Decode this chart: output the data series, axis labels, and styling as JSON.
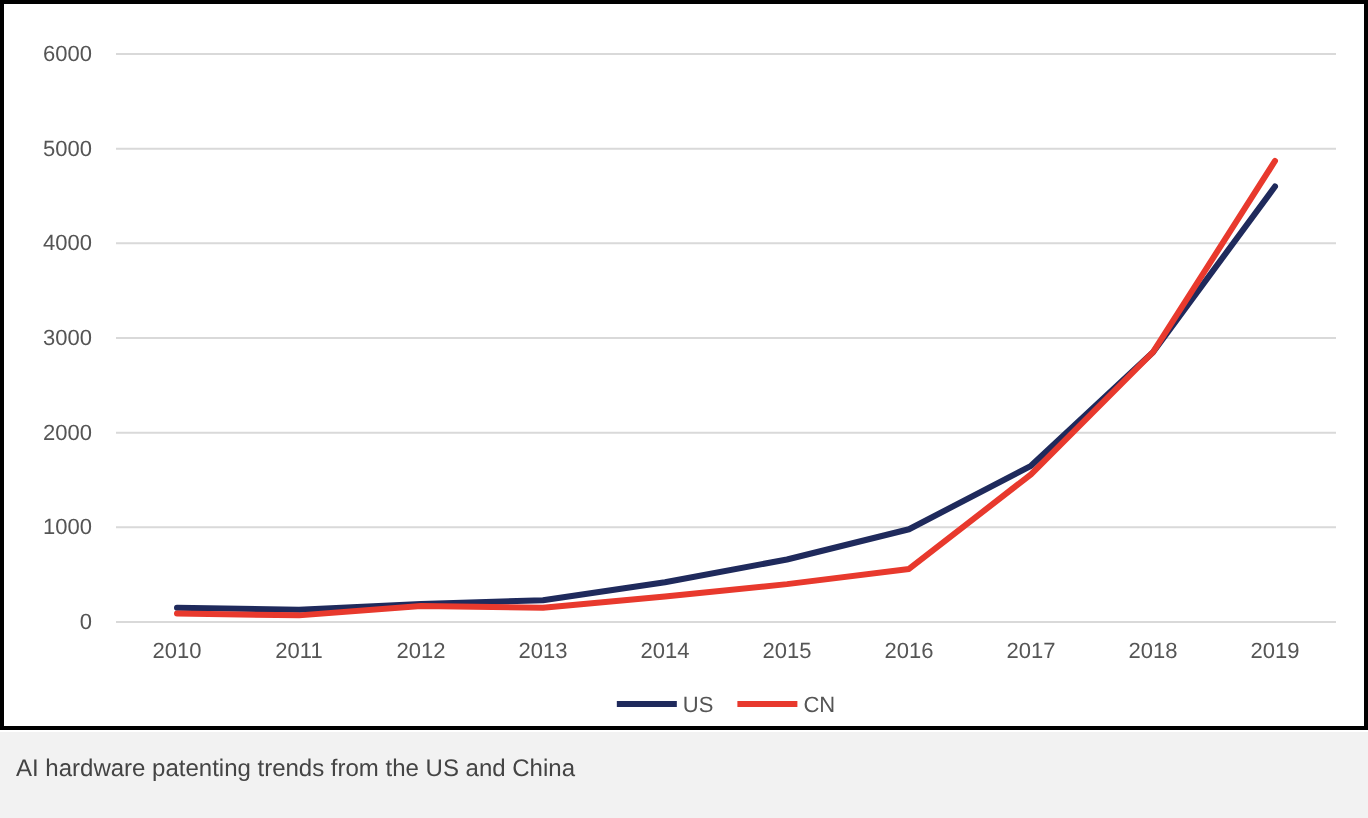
{
  "chart_data": {
    "type": "line",
    "categories": [
      "2010",
      "2011",
      "2012",
      "2013",
      "2014",
      "2015",
      "2016",
      "2017",
      "2018",
      "2019"
    ],
    "series": [
      {
        "name": "US",
        "color": "#1f2a5c",
        "values": [
          150,
          130,
          190,
          230,
          420,
          660,
          980,
          1650,
          2850,
          4600
        ]
      },
      {
        "name": "CN",
        "color": "#e8392d",
        "values": [
          90,
          70,
          170,
          150,
          270,
          400,
          560,
          1560,
          2850,
          4870
        ]
      }
    ],
    "ylim": [
      0,
      6000
    ],
    "yticks": [
      0,
      1000,
      2000,
      3000,
      4000,
      5000,
      6000
    ],
    "grid": "y",
    "legend": "bottom",
    "marker": "none",
    "line_style": "solid",
    "annotations": [
      "AI hardware patenting trends from the US and China"
    ]
  }
}
